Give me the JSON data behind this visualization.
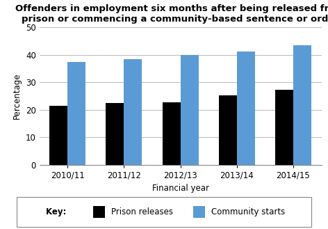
{
  "title": "Offenders in employment six months after being released from\nprison or commencing a community-based sentence or order",
  "xlabel": "Financial year",
  "ylabel": "Percentage",
  "categories": [
    "2010/11",
    "2011/12",
    "2012/13",
    "2013/14",
    "2014/15"
  ],
  "prison_releases": [
    21.6,
    22.5,
    22.7,
    25.4,
    27.3
  ],
  "community_starts": [
    37.4,
    38.5,
    40.1,
    41.2,
    43.6
  ],
  "bar_color_prison": "#000000",
  "bar_color_community": "#5b9bd5",
  "ylim": [
    0,
    50
  ],
  "yticks": [
    0,
    10,
    20,
    30,
    40,
    50
  ],
  "legend_label_prison": "Prison releases",
  "legend_label_community": "Community starts",
  "key_label": "Key:   ",
  "title_fontsize": 9.5,
  "axis_label_fontsize": 8.5,
  "tick_fontsize": 8.5,
  "legend_fontsize": 8.5,
  "bar_width": 0.32,
  "background_color": "#ffffff",
  "grid_color": "#c0c0c0"
}
